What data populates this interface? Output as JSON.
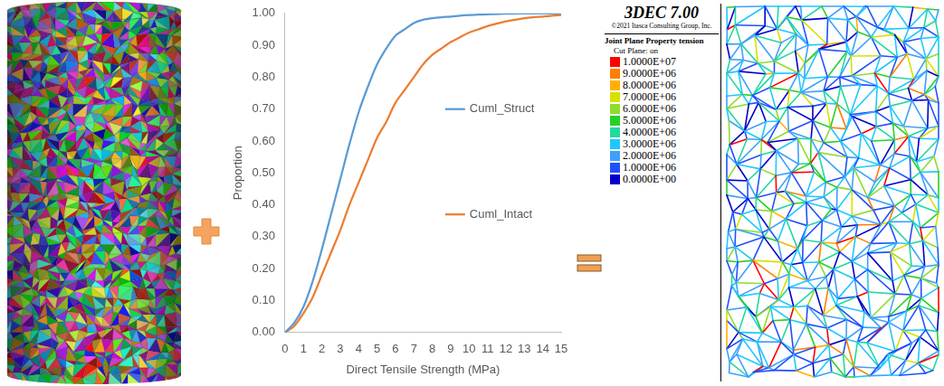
{
  "chart_data": {
    "type": "line",
    "x_title": "Direct Tensile Strength (MPa)",
    "y_title": "Proportion",
    "x": [
      0,
      0.5,
      1,
      1.5,
      2,
      2.5,
      3,
      3.5,
      4,
      4.5,
      5,
      5.5,
      6,
      6.5,
      7,
      7.5,
      8,
      8.5,
      9,
      9.5,
      10,
      10.5,
      11,
      11.5,
      12,
      12.5,
      13,
      13.5,
      14,
      14.5,
      15
    ],
    "series": [
      {
        "name": "Cuml_Struct",
        "color": "#5b9bd5",
        "values": [
          0,
          0.03,
          0.08,
          0.16,
          0.26,
          0.37,
          0.48,
          0.59,
          0.69,
          0.77,
          0.84,
          0.89,
          0.93,
          0.95,
          0.97,
          0.98,
          0.985,
          0.988,
          0.99,
          0.993,
          0.995,
          0.996,
          0.997,
          0.998,
          0.999,
          0.999,
          1,
          1,
          1,
          1,
          1
        ]
      },
      {
        "name": "Cuml_Intact",
        "color": "#ed7d31",
        "values": [
          0,
          0.02,
          0.06,
          0.11,
          0.18,
          0.25,
          0.32,
          0.4,
          0.47,
          0.54,
          0.61,
          0.66,
          0.72,
          0.76,
          0.8,
          0.84,
          0.87,
          0.89,
          0.91,
          0.925,
          0.94,
          0.95,
          0.96,
          0.968,
          0.975,
          0.98,
          0.985,
          0.988,
          0.99,
          0.993,
          0.995
        ]
      }
    ],
    "xlim": [
      0,
      15
    ],
    "xticks": [
      0,
      1,
      2,
      3,
      4,
      5,
      6,
      7,
      8,
      9,
      10,
      11,
      12,
      13,
      14,
      15
    ],
    "ylim": [
      0,
      1
    ],
    "yticks": [
      {
        "value": 0,
        "label": "0.00"
      },
      {
        "value": 0.1,
        "label": "0.10"
      },
      {
        "value": 0.2,
        "label": "0.20"
      },
      {
        "value": 0.3,
        "label": "0.30"
      },
      {
        "value": 0.4,
        "label": "0.40"
      },
      {
        "value": 0.5,
        "label": "0.50"
      },
      {
        "value": 0.6,
        "label": "0.60"
      },
      {
        "value": 0.7,
        "label": "0.70"
      },
      {
        "value": 0.8,
        "label": "0.80"
      },
      {
        "value": 0.9,
        "label": "0.90"
      },
      {
        "value": 1,
        "label": "1.00"
      }
    ],
    "grid": false,
    "legend": "right"
  },
  "legend_box": {
    "title": "3DEC 7.00",
    "copyright": "©2021 Itasca Consulting Group, Inc.",
    "heading": "Joint Plane Property tension",
    "subheading": "Cut Plane: on",
    "colorbar": {
      "values": [
        10000000,
        9000000,
        8000000,
        7000000,
        6000000,
        5000000,
        4000000,
        3000000,
        2000000,
        1000000,
        0
      ],
      "labels": [
        "1.0000E+07",
        "9.0000E+06",
        "8.0000E+06",
        "7.0000E+06",
        "6.0000E+06",
        "5.0000E+06",
        "4.0000E+06",
        "3.0000E+06",
        "2.0000E+06",
        "1.0000E+06",
        "0.0000E+00"
      ],
      "colors": [
        "#ff0000",
        "#ff7f00",
        "#ffb000",
        "#d8e000",
        "#8fdc2f",
        "#27d027",
        "#22d8a0",
        "#1ec8ff",
        "#3ca0ff",
        "#1f50ff",
        "#0000c8"
      ]
    }
  }
}
